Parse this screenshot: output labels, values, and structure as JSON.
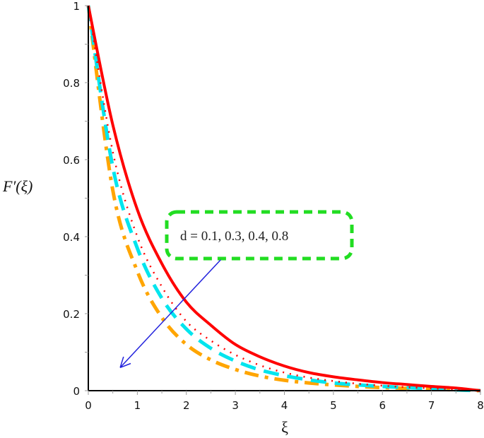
{
  "chart_data": {
    "type": "line",
    "title": "",
    "xlabel": "ξ",
    "ylabel": "F′(ξ)",
    "xlim": [
      0,
      8
    ],
    "ylim": [
      0,
      1
    ],
    "xticks": [
      0,
      1,
      2,
      3,
      4,
      5,
      6,
      7,
      8
    ],
    "yticks": [
      0,
      0.2,
      0.4,
      0.6,
      0.8,
      1
    ],
    "grid": false,
    "x": [
      0,
      0.5,
      1,
      1.5,
      2,
      2.5,
      3,
      3.5,
      4,
      4.5,
      5,
      5.5,
      6,
      6.5,
      7,
      7.5,
      8
    ],
    "series": [
      {
        "name": "d = 0.1",
        "color": "#ff0000",
        "style": "solid",
        "values": [
          1,
          0.69,
          0.47,
          0.33,
          0.23,
          0.17,
          0.12,
          0.088,
          0.064,
          0.047,
          0.036,
          0.028,
          0.021,
          0.016,
          0.011,
          0.007,
          0
        ]
      },
      {
        "name": "d = 0.3",
        "color": "#ff0000",
        "style": "dotted",
        "values": [
          1,
          0.62,
          0.4,
          0.27,
          0.18,
          0.13,
          0.093,
          0.066,
          0.047,
          0.034,
          0.025,
          0.018,
          0.013,
          0.009,
          0.006,
          0.003,
          0
        ]
      },
      {
        "name": "d = 0.4",
        "color": "#00e5ee",
        "style": "dash",
        "values": [
          1,
          0.58,
          0.37,
          0.24,
          0.16,
          0.11,
          0.077,
          0.054,
          0.039,
          0.028,
          0.02,
          0.015,
          0.011,
          0.008,
          0.005,
          0.002,
          0
        ]
      },
      {
        "name": "d = 0.8",
        "color": "#ffa500",
        "style": "dashdot",
        "values": [
          1,
          0.52,
          0.31,
          0.19,
          0.12,
          0.08,
          0.055,
          0.038,
          0.027,
          0.02,
          0.015,
          0.011,
          0.008,
          0.006,
          0.004,
          0.002,
          0
        ]
      }
    ],
    "annotations": [
      {
        "text": "d = 0.1, 0.3, 0.4, 0.8",
        "box": "green dashed rounded",
        "box_color": "#22dd22",
        "arrow": {
          "from": [
            2.7,
            0.34
          ],
          "to": [
            0.65,
            0.06
          ],
          "color": "#2222dd"
        }
      }
    ],
    "legend_position": "inside annotation box"
  }
}
